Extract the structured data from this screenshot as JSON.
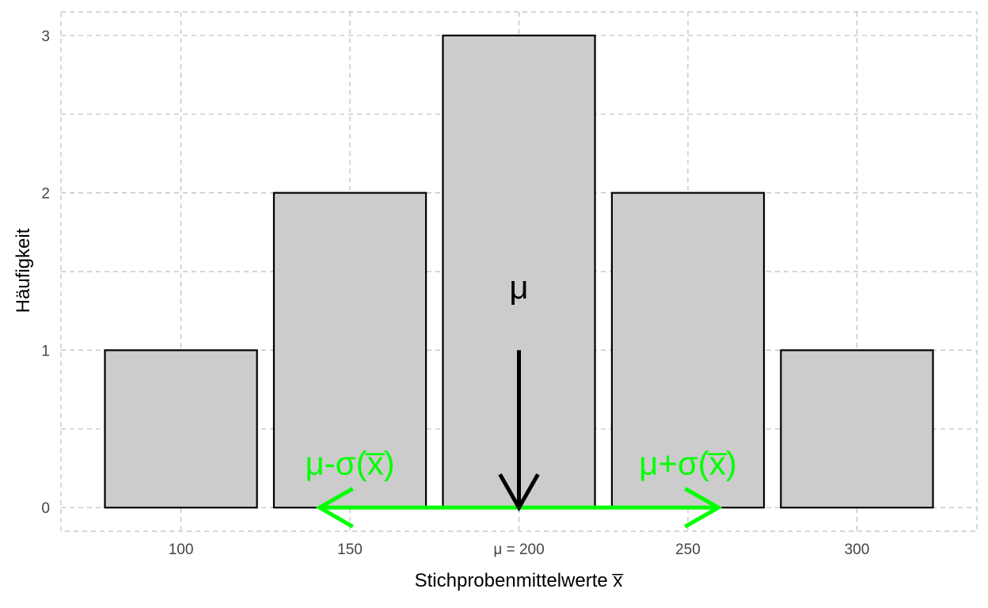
{
  "chart_data": {
    "type": "bar",
    "x": [
      100,
      150,
      200,
      250,
      300
    ],
    "values": [
      1,
      2,
      3,
      2,
      1
    ],
    "xlabel": "Stichprobenmittelwerte x̅",
    "ylabel": "Häufigkeit",
    "x_tick_labels": [
      "100",
      "150",
      "μ = 200",
      "250",
      "300"
    ],
    "y_tick_labels": [
      "0",
      "1",
      "2",
      "3"
    ],
    "y_ticks": [
      0,
      1,
      2,
      3
    ],
    "xlim": [
      64.5,
      335.5
    ],
    "ylim": [
      -0.15,
      3.15
    ],
    "bar_width": 45,
    "grid": true,
    "bar_color": "#cccccc",
    "bar_edge_color": "#000000",
    "annotations": {
      "mu": {
        "text": "μ",
        "x": 200,
        "label_y": 1.4,
        "arrow_from": 1.0,
        "arrow_to": 0,
        "color": "#000000"
      },
      "minus": {
        "text": "μ-σ(x̅)",
        "x": 150,
        "y": 0.28,
        "color": "#00ff00"
      },
      "plus": {
        "text": "μ+σ(x̅)",
        "x": 250,
        "y": 0.28,
        "color": "#00ff00"
      },
      "sigma_arrows": {
        "center": 200,
        "left_end": 141,
        "right_end": 259,
        "y": 0,
        "color": "#00ff00"
      }
    }
  }
}
